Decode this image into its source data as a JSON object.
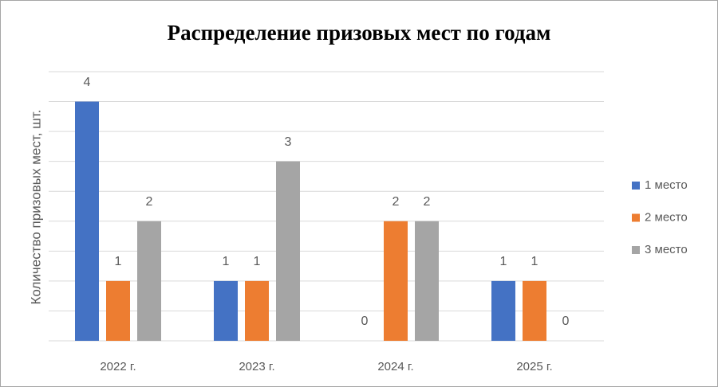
{
  "chart_data": {
    "type": "bar",
    "title": "Распределение призовых мест по годам",
    "y_label": "Количество призовых мест, шт.",
    "categories": [
      "2022 г.",
      "2023 г.",
      "2024 г.",
      "2025 г."
    ],
    "series": [
      {
        "name": "1 место",
        "color": "#4472c4",
        "values": [
          4,
          1,
          0,
          1
        ]
      },
      {
        "name": "2 место",
        "color": "#ed7d31",
        "values": [
          1,
          1,
          2,
          1
        ]
      },
      {
        "name": "3 место",
        "color": "#a5a5a5",
        "values": [
          2,
          3,
          2,
          0
        ]
      }
    ],
    "ylim": [
      0,
      4.5
    ],
    "yticks": [
      0,
      0.5,
      1,
      1.5,
      2,
      2.5,
      3,
      3.5,
      4,
      4.5
    ],
    "y_tick_labels": false,
    "grid": true,
    "legend": "right"
  }
}
